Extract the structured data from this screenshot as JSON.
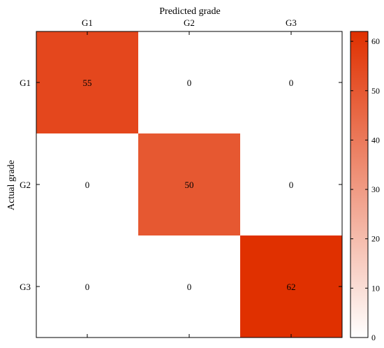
{
  "chart_data": {
    "type": "heatmap",
    "xlabel": "Predicted grade",
    "ylabel": "Actual grade",
    "x_categories": [
      "G1",
      "G2",
      "G3"
    ],
    "y_categories": [
      "G1",
      "G2",
      "G3"
    ],
    "values": [
      [
        55,
        0,
        0
      ],
      [
        0,
        50,
        0
      ],
      [
        0,
        0,
        62
      ]
    ],
    "colorbar": {
      "range": [
        0,
        62
      ],
      "ticks": [
        0,
        10,
        20,
        30,
        40,
        50,
        60
      ],
      "color_low": "#ffffff",
      "color_high": "#e03000"
    },
    "grid": false,
    "colorbar_position": "right"
  }
}
